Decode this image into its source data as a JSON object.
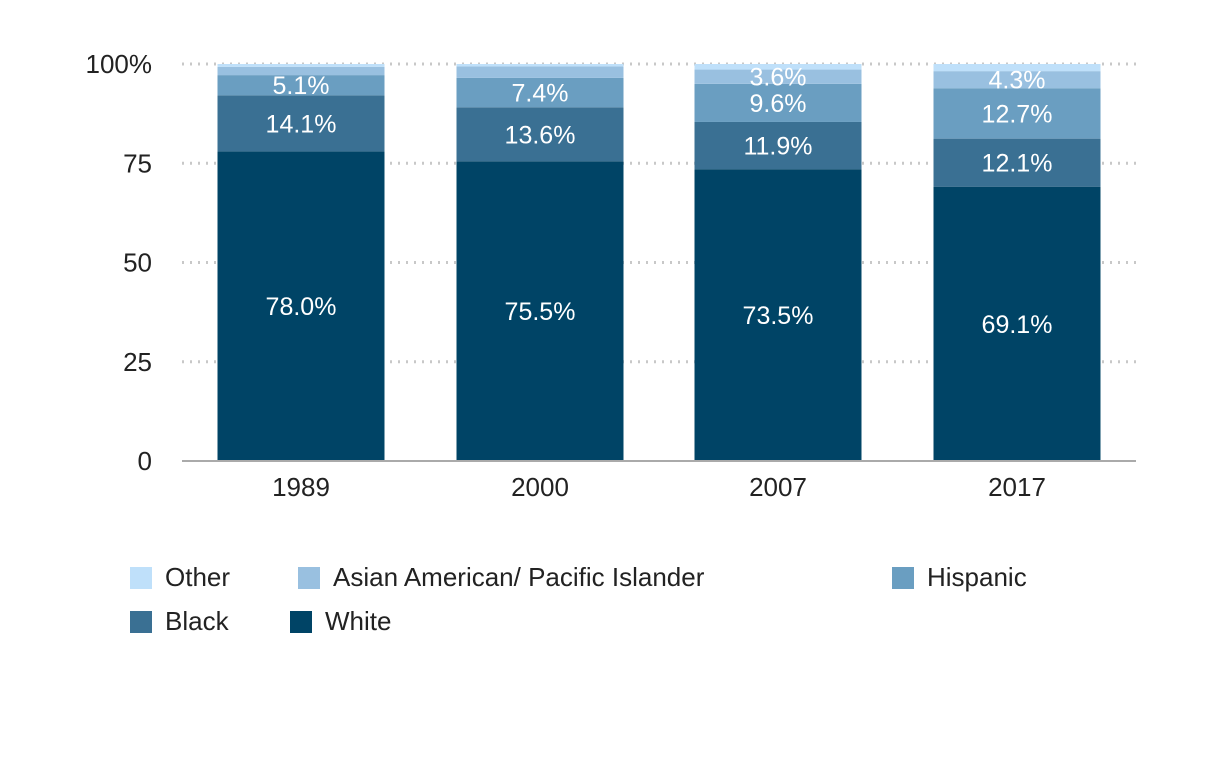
{
  "chart_data": {
    "type": "bar",
    "stacked": true,
    "categories": [
      "1989",
      "2000",
      "2007",
      "2017"
    ],
    "series": [
      {
        "name": "White",
        "color": "#004466",
        "values": [
          78.0,
          75.5,
          73.5,
          69.1
        ],
        "labels": [
          "78.0%",
          "75.5%",
          "73.5%",
          "69.1%"
        ]
      },
      {
        "name": "Black",
        "color": "#3a7093",
        "values": [
          14.1,
          13.6,
          11.9,
          12.1
        ],
        "labels": [
          "14.1%",
          "13.6%",
          "11.9%",
          "12.1%"
        ]
      },
      {
        "name": "Hispanic",
        "color": "#6a9ec1",
        "values": [
          5.1,
          7.4,
          9.6,
          12.7
        ],
        "labels": [
          "5.1%",
          "7.4%",
          "9.6%",
          "12.7%"
        ]
      },
      {
        "name": "Asian American/ Pacific Islander",
        "color": "#99c0e0",
        "values": [
          2.1,
          2.9,
          3.6,
          4.3
        ],
        "labels": [
          "",
          "",
          "3.6%",
          "4.3%"
        ]
      },
      {
        "name": "Other",
        "color": "#bfe0fa",
        "values": [
          0.7,
          0.6,
          1.4,
          1.8
        ],
        "labels": [
          "",
          "",
          "",
          ""
        ]
      }
    ],
    "yticks": [
      "0",
      "25",
      "50",
      "75",
      "100%"
    ],
    "ytick_values": [
      0,
      25,
      50,
      75,
      100
    ],
    "ylim": [
      0,
      100
    ],
    "grid": true,
    "legend_position": "bottom",
    "legend_order": [
      "Other",
      "Asian American/ Pacific Islander",
      "Hispanic",
      "Black",
      "White"
    ]
  }
}
